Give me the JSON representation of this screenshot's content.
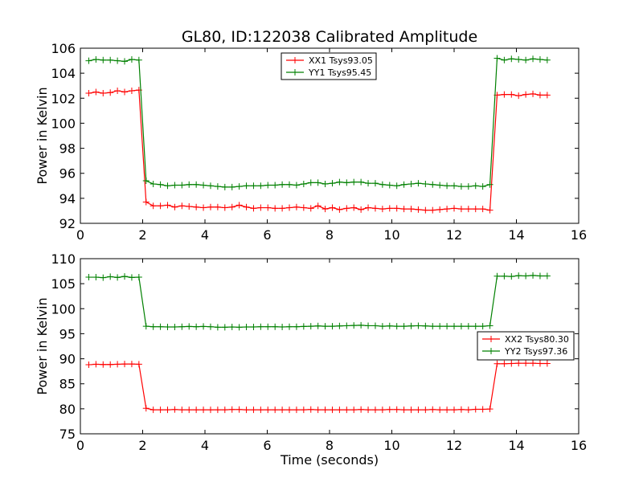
{
  "figure": {
    "title": "GL80, ID:122038 Calibrated Amplitude"
  },
  "chart_data": [
    {
      "type": "line",
      "title": "GL80, ID:122038 Calibrated Amplitude",
      "xlabel": "",
      "ylabel": "Power in Kelvin",
      "xlim": [
        0,
        16
      ],
      "ylim": [
        92,
        106
      ],
      "xticks": [
        "0",
        "2",
        "4",
        "6",
        "8",
        "10",
        "12",
        "14",
        "16"
      ],
      "yticks": [
        "92",
        "94",
        "96",
        "98",
        "100",
        "102",
        "104",
        "106"
      ],
      "grid": false,
      "legend_position": "top-center",
      "series": [
        {
          "name": "XX1 Tsys93.05",
          "color": "#ff0000",
          "x": [
            0.27,
            0.5,
            0.73,
            0.96,
            1.19,
            1.42,
            1.65,
            1.88,
            2.11,
            2.34,
            2.57,
            2.8,
            3.03,
            3.26,
            3.49,
            3.72,
            3.95,
            4.18,
            4.41,
            4.64,
            4.87,
            5.1,
            5.33,
            5.56,
            5.79,
            6.02,
            6.25,
            6.48,
            6.71,
            6.94,
            7.17,
            7.4,
            7.63,
            7.86,
            8.09,
            8.32,
            8.55,
            8.78,
            9.01,
            9.24,
            9.47,
            9.7,
            9.93,
            10.16,
            10.39,
            10.62,
            10.85,
            11.08,
            11.31,
            11.54,
            11.77,
            12.0,
            12.23,
            12.46,
            12.69,
            12.92,
            13.15,
            13.38,
            13.61,
            13.84,
            14.07,
            14.3,
            14.53,
            14.76,
            14.99
          ],
          "y": [
            102.4,
            102.5,
            102.4,
            102.45,
            102.6,
            102.5,
            102.6,
            102.65,
            93.7,
            93.4,
            93.4,
            93.45,
            93.3,
            93.4,
            93.35,
            93.3,
            93.25,
            93.3,
            93.3,
            93.25,
            93.3,
            93.45,
            93.3,
            93.2,
            93.25,
            93.25,
            93.2,
            93.2,
            93.25,
            93.3,
            93.25,
            93.2,
            93.4,
            93.15,
            93.25,
            93.1,
            93.2,
            93.25,
            93.1,
            93.25,
            93.2,
            93.15,
            93.2,
            93.2,
            93.15,
            93.15,
            93.1,
            93.05,
            93.05,
            93.1,
            93.15,
            93.2,
            93.15,
            93.15,
            93.15,
            93.15,
            93.05,
            102.25,
            102.3,
            102.3,
            102.2,
            102.3,
            102.35,
            102.25,
            102.25
          ]
        },
        {
          "name": "YY1 Tsys95.45",
          "color": "#008000",
          "x": [
            0.27,
            0.5,
            0.73,
            0.96,
            1.19,
            1.42,
            1.65,
            1.88,
            2.11,
            2.34,
            2.57,
            2.8,
            3.03,
            3.26,
            3.49,
            3.72,
            3.95,
            4.18,
            4.41,
            4.64,
            4.87,
            5.1,
            5.33,
            5.56,
            5.79,
            6.02,
            6.25,
            6.48,
            6.71,
            6.94,
            7.17,
            7.4,
            7.63,
            7.86,
            8.09,
            8.32,
            8.55,
            8.78,
            9.01,
            9.24,
            9.47,
            9.7,
            9.93,
            10.16,
            10.39,
            10.62,
            10.85,
            11.08,
            11.31,
            11.54,
            11.77,
            12.0,
            12.23,
            12.46,
            12.69,
            12.92,
            13.15,
            13.38,
            13.61,
            13.84,
            14.07,
            14.3,
            14.53,
            14.76,
            14.99
          ],
          "y": [
            105.0,
            105.1,
            105.05,
            105.05,
            105.0,
            104.95,
            105.1,
            105.05,
            95.4,
            95.15,
            95.1,
            95.0,
            95.05,
            95.05,
            95.1,
            95.1,
            95.05,
            95.0,
            94.95,
            94.9,
            94.9,
            94.95,
            95.0,
            95.0,
            95.0,
            95.05,
            95.05,
            95.1,
            95.1,
            95.05,
            95.15,
            95.25,
            95.25,
            95.15,
            95.2,
            95.3,
            95.25,
            95.3,
            95.3,
            95.2,
            95.2,
            95.1,
            95.05,
            95.0,
            95.1,
            95.15,
            95.2,
            95.15,
            95.1,
            95.05,
            95.0,
            95.0,
            94.95,
            94.95,
            95.0,
            94.95,
            95.1,
            105.2,
            105.05,
            105.15,
            105.1,
            105.05,
            105.15,
            105.1,
            105.05
          ]
        }
      ]
    },
    {
      "type": "line",
      "title": "",
      "xlabel": "Time (seconds)",
      "ylabel": "Power in Kelvin",
      "xlim": [
        0,
        16
      ],
      "ylim": [
        75,
        110
      ],
      "xticks": [
        "0",
        "2",
        "4",
        "6",
        "8",
        "10",
        "12",
        "14",
        "16"
      ],
      "yticks": [
        "75",
        "80",
        "85",
        "90",
        "95",
        "100",
        "105",
        "110"
      ],
      "grid": false,
      "legend_position": "center-right",
      "series": [
        {
          "name": "XX2 Tsys80.30",
          "color": "#ff0000",
          "x": [
            0.27,
            0.5,
            0.73,
            0.96,
            1.19,
            1.42,
            1.65,
            1.88,
            2.11,
            2.34,
            2.57,
            2.8,
            3.03,
            3.26,
            3.49,
            3.72,
            3.95,
            4.18,
            4.41,
            4.64,
            4.87,
            5.1,
            5.33,
            5.56,
            5.79,
            6.02,
            6.25,
            6.48,
            6.71,
            6.94,
            7.17,
            7.4,
            7.63,
            7.86,
            8.09,
            8.32,
            8.55,
            8.78,
            9.01,
            9.24,
            9.47,
            9.7,
            9.93,
            10.16,
            10.39,
            10.62,
            10.85,
            11.08,
            11.31,
            11.54,
            11.77,
            12.0,
            12.23,
            12.46,
            12.69,
            12.92,
            13.15,
            13.38,
            13.61,
            13.84,
            14.07,
            14.3,
            14.53,
            14.76,
            14.99
          ],
          "y": [
            88.8,
            88.9,
            88.85,
            88.85,
            88.9,
            88.95,
            88.95,
            88.9,
            80.1,
            79.8,
            79.8,
            79.8,
            79.85,
            79.8,
            79.8,
            79.8,
            79.8,
            79.8,
            79.8,
            79.8,
            79.85,
            79.85,
            79.8,
            79.8,
            79.8,
            79.8,
            79.8,
            79.8,
            79.8,
            79.8,
            79.8,
            79.85,
            79.8,
            79.8,
            79.8,
            79.8,
            79.8,
            79.8,
            79.85,
            79.8,
            79.8,
            79.8,
            79.85,
            79.85,
            79.8,
            79.8,
            79.8,
            79.8,
            79.85,
            79.8,
            79.8,
            79.8,
            79.85,
            79.8,
            79.9,
            79.9,
            79.95,
            89.0,
            89.0,
            89.05,
            89.1,
            89.1,
            89.1,
            89.05,
            89.05
          ]
        },
        {
          "name": "YY2 Tsys97.36",
          "color": "#008000",
          "x": [
            0.27,
            0.5,
            0.73,
            0.96,
            1.19,
            1.42,
            1.65,
            1.88,
            2.11,
            2.34,
            2.57,
            2.8,
            3.03,
            3.26,
            3.49,
            3.72,
            3.95,
            4.18,
            4.41,
            4.64,
            4.87,
            5.1,
            5.33,
            5.56,
            5.79,
            6.02,
            6.25,
            6.48,
            6.71,
            6.94,
            7.17,
            7.4,
            7.63,
            7.86,
            8.09,
            8.32,
            8.55,
            8.78,
            9.01,
            9.24,
            9.47,
            9.7,
            9.93,
            10.16,
            10.39,
            10.62,
            10.85,
            11.08,
            11.31,
            11.54,
            11.77,
            12.0,
            12.23,
            12.46,
            12.69,
            12.92,
            13.15,
            13.38,
            13.61,
            13.84,
            14.07,
            14.3,
            14.53,
            14.76,
            14.99
          ],
          "y": [
            106.3,
            106.3,
            106.2,
            106.4,
            106.25,
            106.45,
            106.25,
            106.3,
            96.5,
            96.4,
            96.4,
            96.35,
            96.35,
            96.4,
            96.45,
            96.4,
            96.45,
            96.4,
            96.3,
            96.3,
            96.35,
            96.3,
            96.35,
            96.35,
            96.4,
            96.4,
            96.4,
            96.35,
            96.4,
            96.4,
            96.45,
            96.5,
            96.55,
            96.5,
            96.5,
            96.55,
            96.6,
            96.65,
            96.7,
            96.6,
            96.6,
            96.5,
            96.55,
            96.5,
            96.5,
            96.55,
            96.6,
            96.55,
            96.5,
            96.5,
            96.5,
            96.5,
            96.5,
            96.5,
            96.5,
            96.5,
            96.6,
            106.5,
            106.5,
            106.45,
            106.6,
            106.55,
            106.65,
            106.55,
            106.55
          ]
        }
      ]
    }
  ]
}
